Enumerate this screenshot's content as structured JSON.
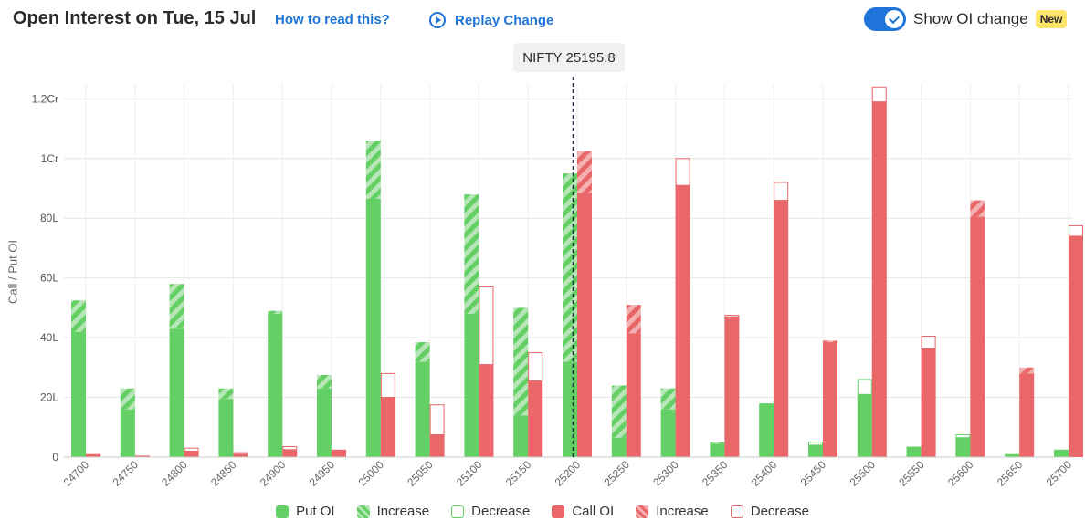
{
  "header": {
    "title": "Open Interest on Tue, 15 Jul",
    "how_to_read": "How to read this?",
    "replay": "Replay Change",
    "toggle_label": "Show OI change",
    "toggle_on": true,
    "badge": "New"
  },
  "nifty_label": "NIFTY 25195.8",
  "colors": {
    "put": "#64cf64",
    "put_light": "#b6e6b6",
    "call": "#e96769",
    "call_light": "#f3b1b2",
    "accent": "#1e74d8"
  },
  "legend": [
    {
      "label": "Put OI",
      "kind": "put-solid"
    },
    {
      "label": "Increase",
      "kind": "put-increase"
    },
    {
      "label": "Decrease",
      "kind": "put-decrease"
    },
    {
      "label": "Call OI",
      "kind": "call-solid"
    },
    {
      "label": "Increase",
      "kind": "call-increase"
    },
    {
      "label": "Decrease",
      "kind": "call-decrease"
    }
  ],
  "chart_data": {
    "type": "bar",
    "ylabel": "Call / Put OI",
    "ylim": [
      0,
      125
    ],
    "yticks": [
      0,
      20,
      40,
      60,
      80,
      100,
      120
    ],
    "ytick_labels": [
      "0",
      "20L",
      "40L",
      "60L",
      "80L",
      "1Cr",
      "1.2Cr"
    ],
    "units": "Lakh",
    "spot": 25195.8,
    "categories": [
      "24700",
      "24750",
      "24800",
      "24850",
      "24900",
      "24950",
      "25000",
      "25050",
      "25100",
      "25150",
      "25200",
      "25250",
      "25300",
      "25350",
      "25400",
      "25450",
      "25500",
      "25550",
      "25600",
      "25650",
      "25700"
    ],
    "series": [
      {
        "name": "Put OI",
        "base": [
          42,
          16,
          43,
          19.5,
          48,
          23,
          86.5,
          32,
          48,
          14,
          32,
          6.5,
          16,
          4.5,
          18,
          4,
          21,
          3.5,
          6.5,
          1,
          2.5
        ],
        "change": [
          10.5,
          7,
          15,
          3.5,
          1,
          4.5,
          19.5,
          6.5,
          40,
          36,
          63,
          17.5,
          7,
          0.5,
          0,
          1,
          5,
          0,
          1,
          0,
          0
        ]
      },
      {
        "name": "Call OI",
        "base": [
          1,
          0.5,
          2,
          1,
          2.5,
          2.5,
          20,
          7.5,
          31,
          25.5,
          88.5,
          41.5,
          91,
          47,
          86,
          38.5,
          119,
          36.5,
          80.5,
          28,
          74
        ],
        "change": [
          0,
          0,
          1,
          0.5,
          1,
          0,
          8,
          10,
          26,
          9.5,
          14,
          9.5,
          9,
          0.5,
          6,
          0.5,
          5,
          4,
          5.5,
          2,
          3.5
        ]
      }
    ],
    "change_type": {
      "Put OI": [
        "increase",
        "increase",
        "increase",
        "increase",
        "increase",
        "increase",
        "increase",
        "increase",
        "increase",
        "increase",
        "increase",
        "increase",
        "increase",
        "increase",
        "increase",
        "decrease",
        "decrease",
        "increase",
        "decrease",
        "increase",
        "increase"
      ],
      "Call OI": [
        "decrease",
        "decrease",
        "decrease",
        "decrease",
        "decrease",
        "increase",
        "decrease",
        "decrease",
        "decrease",
        "decrease",
        "increase",
        "increase",
        "decrease",
        "decrease",
        "decrease",
        "increase",
        "decrease",
        "decrease",
        "increase",
        "increase",
        "decrease"
      ]
    },
    "grid": true
  }
}
